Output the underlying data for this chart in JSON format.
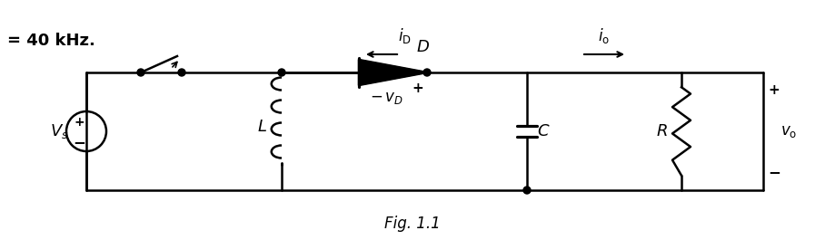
{
  "title": "Fig. 1.1",
  "freq_label": "= 40 kHz.",
  "background_color": "#ffffff",
  "line_color": "#000000",
  "figsize": [
    9.08,
    2.65
  ],
  "dpi": 100
}
